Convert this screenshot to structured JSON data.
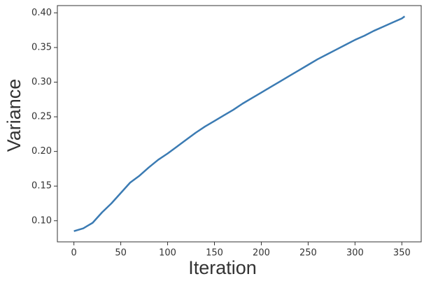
{
  "chart_data": {
    "type": "line",
    "x_label": "Iteration",
    "y_label": "Variance",
    "x": [
      0,
      10,
      20,
      30,
      40,
      50,
      60,
      70,
      80,
      90,
      100,
      110,
      120,
      130,
      140,
      150,
      160,
      170,
      180,
      190,
      200,
      210,
      220,
      230,
      240,
      250,
      260,
      270,
      280,
      290,
      300,
      310,
      320,
      330,
      340,
      350,
      353
    ],
    "series": [
      {
        "name": "Variance",
        "color": "#3b7bb3",
        "values": [
          0.085,
          0.089,
          0.097,
          0.112,
          0.125,
          0.14,
          0.155,
          0.165,
          0.177,
          0.188,
          0.197,
          0.207,
          0.217,
          0.227,
          0.236,
          0.244,
          0.252,
          0.26,
          0.269,
          0.277,
          0.285,
          0.293,
          0.301,
          0.309,
          0.317,
          0.325,
          0.333,
          0.34,
          0.347,
          0.354,
          0.361,
          0.367,
          0.374,
          0.38,
          0.386,
          0.392,
          0.395
        ]
      }
    ],
    "xlim": [
      -17.65,
      370.65
    ],
    "ylim": [
      0.0695,
      0.4105
    ],
    "xticks": [
      0,
      50,
      100,
      150,
      200,
      250,
      300,
      350
    ],
    "yticks": [
      {
        "value": 0.1,
        "label": "0.10"
      },
      {
        "value": 0.15,
        "label": "0.15"
      },
      {
        "value": 0.2,
        "label": "0.20"
      },
      {
        "value": 0.25,
        "label": "0.25"
      },
      {
        "value": 0.3,
        "label": "0.30"
      },
      {
        "value": 0.35,
        "label": "0.35"
      },
      {
        "value": 0.4,
        "label": "0.40"
      }
    ],
    "grid": false
  }
}
